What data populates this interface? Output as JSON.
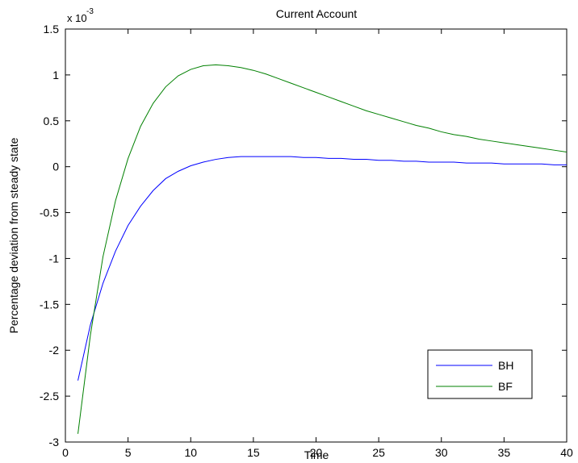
{
  "chart_data": {
    "type": "line",
    "title": "Current Account",
    "xlabel": "Time",
    "ylabel": "Percentage deviation from steady state",
    "y_exponent_label": "x 10",
    "y_exponent": "-3",
    "xlim": [
      0,
      40
    ],
    "ylim": [
      -3,
      1.5
    ],
    "x_ticks": [
      0,
      5,
      10,
      15,
      20,
      25,
      30,
      35,
      40
    ],
    "x_tick_labels": [
      "0",
      "5",
      "10",
      "15",
      "20",
      "25",
      "30",
      "35",
      "40"
    ],
    "y_ticks": [
      -3,
      -2.5,
      -2,
      -1.5,
      -1,
      -0.5,
      0,
      0.5,
      1,
      1.5
    ],
    "y_tick_labels": [
      "-3",
      "-2.5",
      "-2",
      "-1.5",
      "-1",
      "-0.5",
      "0",
      "0.5",
      "1",
      "1.5"
    ],
    "grid": false,
    "legend_position": "bottom-right",
    "x": [
      1,
      2,
      3,
      4,
      5,
      6,
      7,
      8,
      9,
      10,
      11,
      12,
      13,
      14,
      15,
      16,
      17,
      18,
      19,
      20,
      21,
      22,
      23,
      24,
      25,
      26,
      27,
      28,
      29,
      30,
      31,
      32,
      33,
      34,
      35,
      36,
      37,
      38,
      39,
      40
    ],
    "series": [
      {
        "name": "BH",
        "color": "#0000ff",
        "values": [
          -2.33,
          -1.72,
          -1.27,
          -0.92,
          -0.64,
          -0.43,
          -0.26,
          -0.13,
          -0.05,
          0.01,
          0.05,
          0.08,
          0.1,
          0.11,
          0.11,
          0.11,
          0.11,
          0.11,
          0.1,
          0.1,
          0.09,
          0.09,
          0.08,
          0.08,
          0.07,
          0.07,
          0.06,
          0.06,
          0.05,
          0.05,
          0.05,
          0.04,
          0.04,
          0.04,
          0.03,
          0.03,
          0.03,
          0.03,
          0.02,
          0.02
        ]
      },
      {
        "name": "BF",
        "color": "#008000",
        "values": [
          -2.91,
          -1.83,
          -0.98,
          -0.37,
          0.09,
          0.44,
          0.69,
          0.87,
          0.99,
          1.06,
          1.1,
          1.11,
          1.1,
          1.08,
          1.05,
          1.01,
          0.96,
          0.91,
          0.86,
          0.81,
          0.76,
          0.71,
          0.66,
          0.61,
          0.57,
          0.53,
          0.49,
          0.45,
          0.42,
          0.38,
          0.35,
          0.33,
          0.3,
          0.28,
          0.26,
          0.24,
          0.22,
          0.2,
          0.18,
          0.16
        ]
      }
    ]
  }
}
